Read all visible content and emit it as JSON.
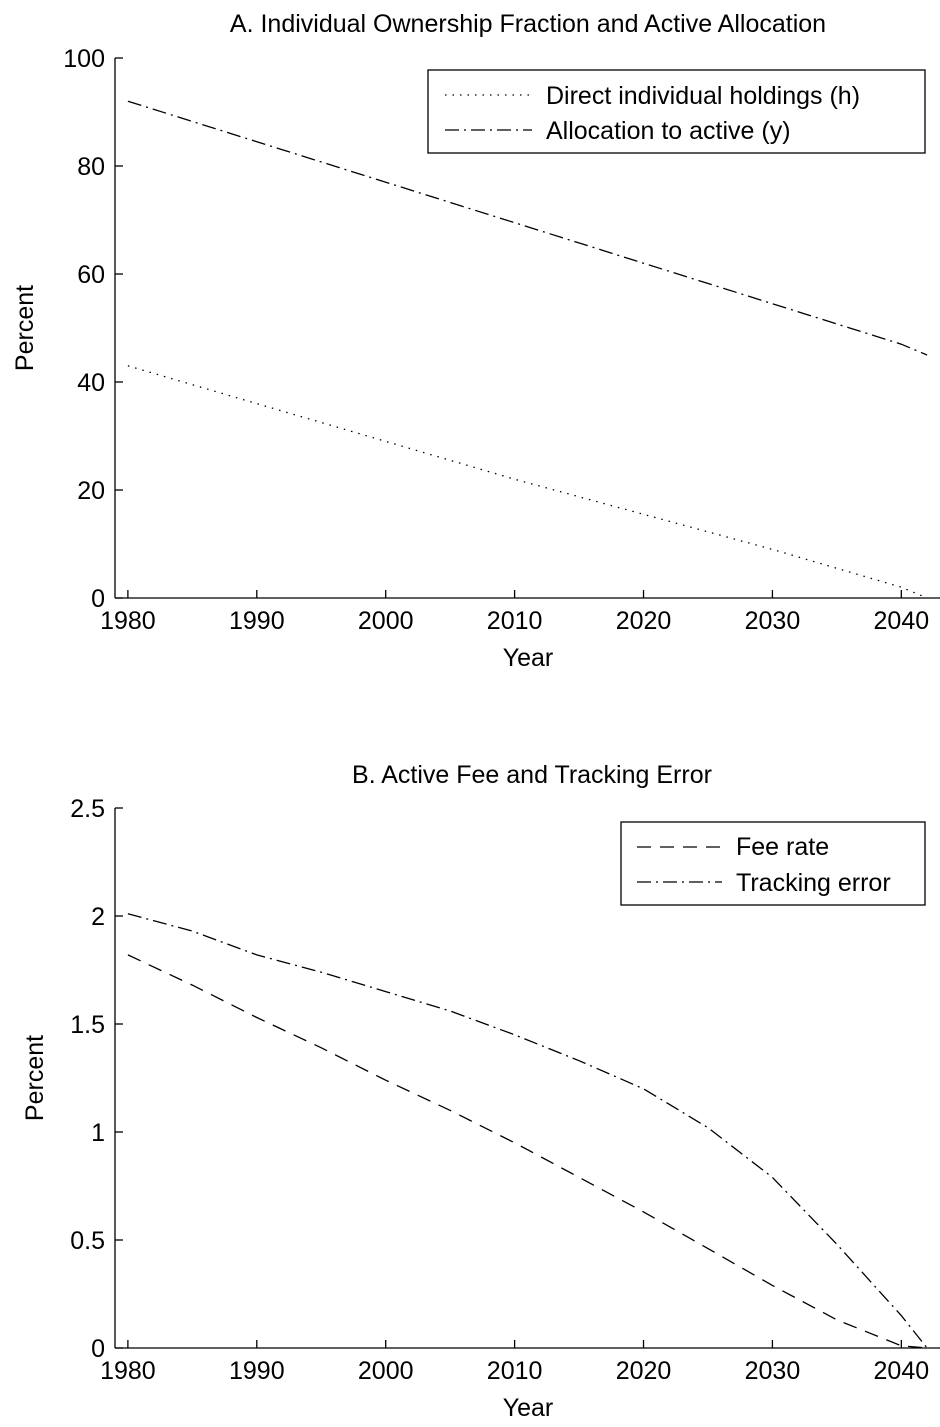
{
  "chart_data": [
    {
      "id": "panel_a",
      "type": "line",
      "title": "A. Individual Ownership Fraction and Active Allocation",
      "xlabel": "Year",
      "ylabel": "Percent",
      "xlim": [
        1979,
        2043
      ],
      "ylim": [
        0,
        100
      ],
      "xticks": [
        1980,
        1990,
        2000,
        2010,
        2020,
        2030,
        2040
      ],
      "yticks": [
        0,
        20,
        40,
        60,
        80,
        100
      ],
      "xtick_labels": [
        "1980",
        "1990",
        "2000",
        "2010",
        "2020",
        "2030",
        "2040"
      ],
      "ytick_labels": [
        "0",
        "20",
        "40",
        "60",
        "80",
        "100"
      ],
      "grid": false,
      "legend_position": "top-right",
      "series": [
        {
          "name": "Direct individual holdings (h)",
          "style": "dotted",
          "x": [
            1980,
            1990,
            2000,
            2010,
            2020,
            2030,
            2040,
            2042
          ],
          "y": [
            43,
            36,
            29,
            22,
            15.5,
            9,
            2,
            0
          ]
        },
        {
          "name": "Allocation to active (y)",
          "style": "dashdot",
          "x": [
            1980,
            1990,
            2000,
            2010,
            2020,
            2030,
            2040,
            2042
          ],
          "y": [
            92,
            84.5,
            77,
            69.5,
            62,
            54.5,
            47,
            45
          ]
        }
      ]
    },
    {
      "id": "panel_b",
      "type": "line",
      "title": "B. Active Fee and Tracking Error",
      "xlabel": "Year",
      "ylabel": "Percent",
      "xlim": [
        1979,
        2043
      ],
      "ylim": [
        0,
        2.5
      ],
      "xticks": [
        1980,
        1990,
        2000,
        2010,
        2020,
        2030,
        2040
      ],
      "yticks": [
        0,
        0.5,
        1,
        1.5,
        2,
        2.5
      ],
      "xtick_labels": [
        "1980",
        "1990",
        "2000",
        "2010",
        "2020",
        "2030",
        "2040"
      ],
      "ytick_labels": [
        "0",
        "0.5",
        "1",
        "1.5",
        "2",
        "2.5"
      ],
      "grid": false,
      "legend_position": "top-right",
      "series": [
        {
          "name": "Fee rate",
          "style": "dashed",
          "x": [
            1980,
            1985,
            1990,
            1995,
            2000,
            2005,
            2010,
            2015,
            2020,
            2025,
            2030,
            2035,
            2040,
            2042
          ],
          "y": [
            1.82,
            1.68,
            1.53,
            1.39,
            1.24,
            1.1,
            0.95,
            0.79,
            0.63,
            0.46,
            0.29,
            0.13,
            0.01,
            0.0
          ]
        },
        {
          "name": "Tracking error",
          "style": "dashdot",
          "x": [
            1980,
            1985,
            1990,
            1995,
            2000,
            2005,
            2010,
            2015,
            2020,
            2025,
            2030,
            2035,
            2040,
            2042
          ],
          "y": [
            2.01,
            1.93,
            1.82,
            1.74,
            1.65,
            1.56,
            1.45,
            1.33,
            1.2,
            1.02,
            0.79,
            0.48,
            0.15,
            0.0
          ]
        }
      ]
    }
  ]
}
